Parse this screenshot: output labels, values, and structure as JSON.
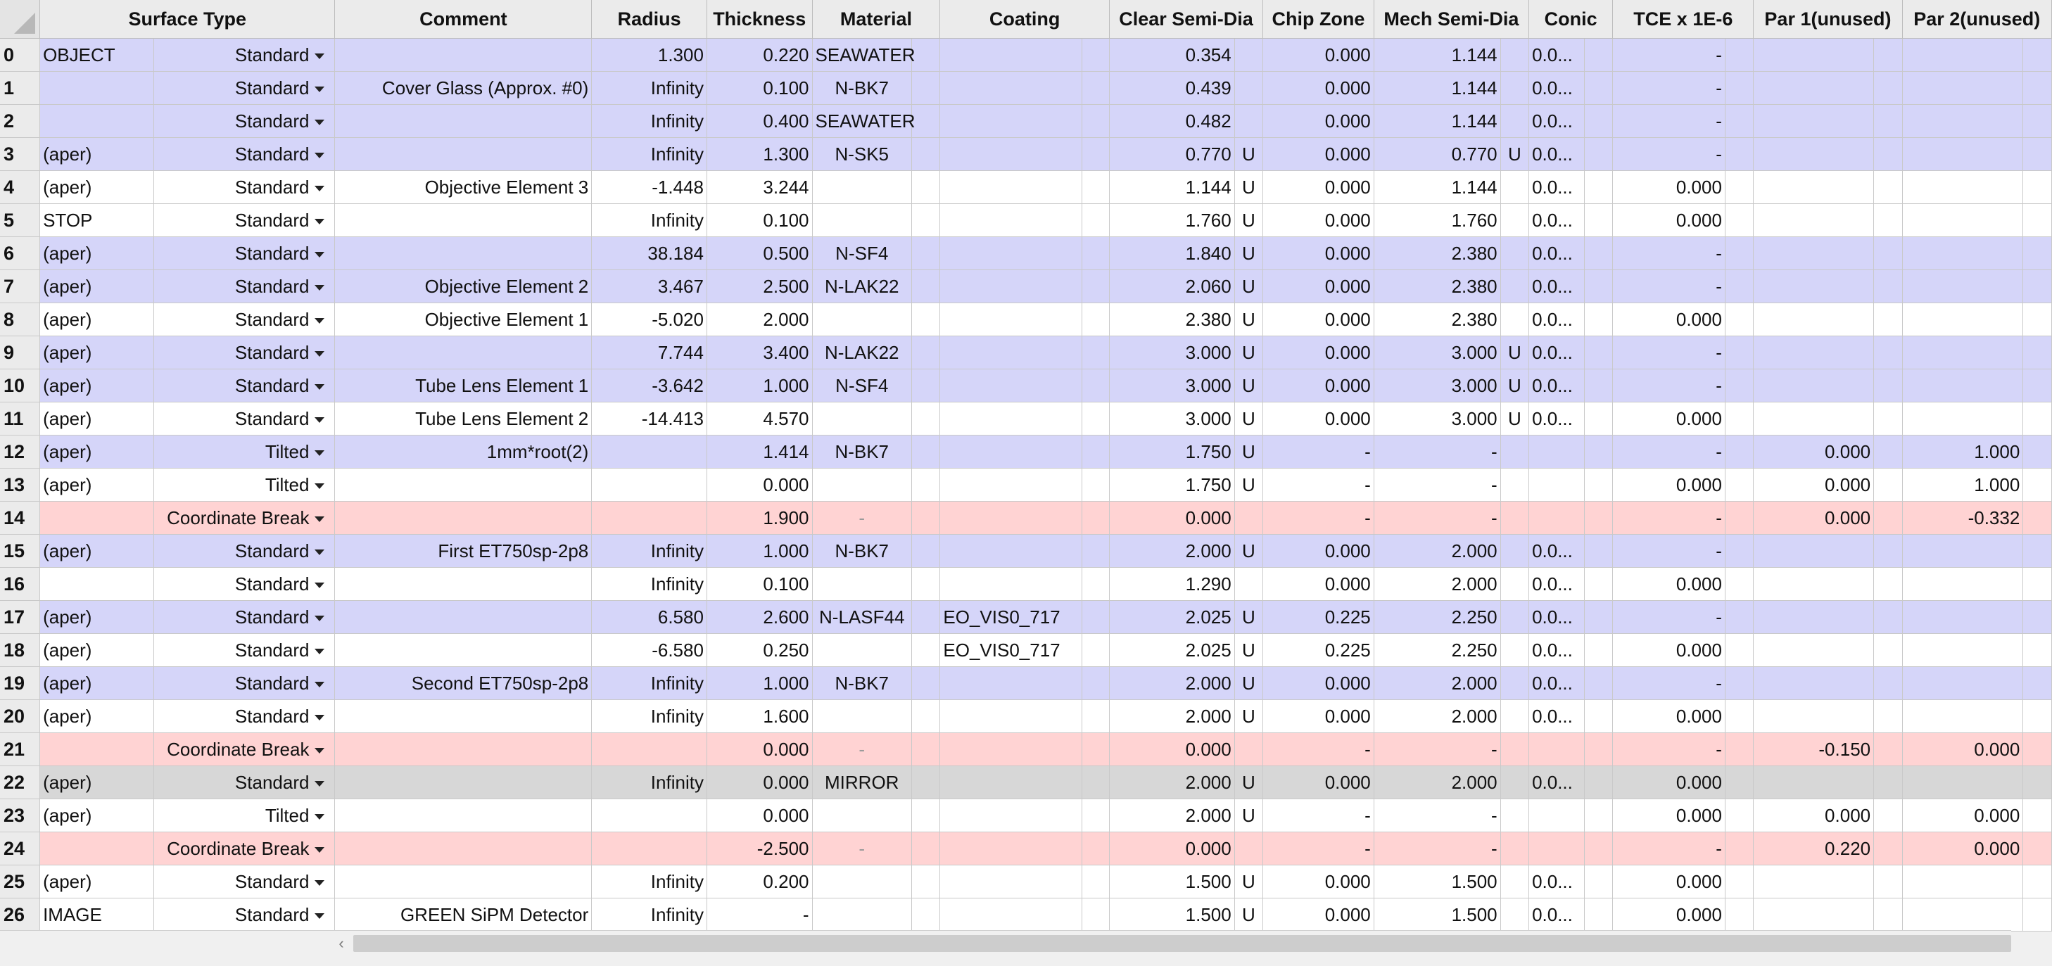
{
  "headers": {
    "surface_type": "Surface Type",
    "comment": "Comment",
    "radius": "Radius",
    "thickness": "Thickness",
    "material": "Material",
    "coating": "Coating",
    "clear_semi_dia": "Clear Semi-Dia",
    "chip_zone": "Chip Zone",
    "mech_semi_dia": "Mech Semi-Dia",
    "conic": "Conic",
    "tce": "TCE x 1E-6",
    "par1": "Par 1(unused)",
    "par2": "Par 2(unused)"
  },
  "row_colors": {
    "highlight": "#d5d5f9",
    "normal": "#ffffff",
    "coordinate_break": "#ffd3d3",
    "mirror": "#d7d7d7"
  },
  "rows": [
    {
      "num": "0",
      "name": "OBJECT",
      "type": "Standard",
      "comment": "",
      "radius": "1.300",
      "thickness": "0.220",
      "material": "SEAWATER",
      "coating": "",
      "clear": "0.354",
      "clear_flag": "",
      "chip": "0.000",
      "mech": "1.144",
      "mech_flag": "",
      "conic": "0.0...",
      "tce": "-",
      "par1": "",
      "par2": ""
    },
    {
      "num": "1",
      "name": "",
      "type": "Standard",
      "comment": "Cover Glass (Approx. #0)",
      "radius": "Infinity",
      "thickness": "0.100",
      "material": "N-BK7",
      "coating": "",
      "clear": "0.439",
      "clear_flag": "",
      "chip": "0.000",
      "mech": "1.144",
      "mech_flag": "",
      "conic": "0.0...",
      "tce": "-",
      "par1": "",
      "par2": ""
    },
    {
      "num": "2",
      "name": "",
      "type": "Standard",
      "comment": "",
      "radius": "Infinity",
      "thickness": "0.400",
      "material": "SEAWATER",
      "coating": "",
      "clear": "0.482",
      "clear_flag": "",
      "chip": "0.000",
      "mech": "1.144",
      "mech_flag": "",
      "conic": "0.0...",
      "tce": "-",
      "par1": "",
      "par2": ""
    },
    {
      "num": "3",
      "name": "(aper)",
      "type": "Standard",
      "comment": "",
      "radius": "Infinity",
      "thickness": "1.300",
      "material": "N-SK5",
      "coating": "",
      "clear": "0.770",
      "clear_flag": "U",
      "chip": "0.000",
      "mech": "0.770",
      "mech_flag": "U",
      "conic": "0.0...",
      "tce": "-",
      "par1": "",
      "par2": ""
    },
    {
      "num": "4",
      "name": "(aper)",
      "type": "Standard",
      "comment": "Objective Element 3",
      "radius": "-1.448",
      "thickness": "3.244",
      "material": "",
      "coating": "",
      "clear": "1.144",
      "clear_flag": "U",
      "chip": "0.000",
      "mech": "1.144",
      "mech_flag": "",
      "conic": "0.0...",
      "tce": "0.000",
      "par1": "",
      "par2": ""
    },
    {
      "num": "5",
      "name": "STOP",
      "type": "Standard",
      "comment": "",
      "radius": "Infinity",
      "thickness": "0.100",
      "material": "",
      "coating": "",
      "clear": "1.760",
      "clear_flag": "U",
      "chip": "0.000",
      "mech": "1.760",
      "mech_flag": "",
      "conic": "0.0...",
      "tce": "0.000",
      "par1": "",
      "par2": ""
    },
    {
      "num": "6",
      "name": "(aper)",
      "type": "Standard",
      "comment": "",
      "radius": "38.184",
      "thickness": "0.500",
      "material": "N-SF4",
      "coating": "",
      "clear": "1.840",
      "clear_flag": "U",
      "chip": "0.000",
      "mech": "2.380",
      "mech_flag": "",
      "conic": "0.0...",
      "tce": "-",
      "par1": "",
      "par2": ""
    },
    {
      "num": "7",
      "name": "(aper)",
      "type": "Standard",
      "comment": "Objective Element 2",
      "radius": "3.467",
      "thickness": "2.500",
      "material": "N-LAK22",
      "coating": "",
      "clear": "2.060",
      "clear_flag": "U",
      "chip": "0.000",
      "mech": "2.380",
      "mech_flag": "",
      "conic": "0.0...",
      "tce": "-",
      "par1": "",
      "par2": ""
    },
    {
      "num": "8",
      "name": "(aper)",
      "type": "Standard",
      "comment": "Objective Element 1",
      "radius": "-5.020",
      "thickness": "2.000",
      "material": "",
      "coating": "",
      "clear": "2.380",
      "clear_flag": "U",
      "chip": "0.000",
      "mech": "2.380",
      "mech_flag": "",
      "conic": "0.0...",
      "tce": "0.000",
      "par1": "",
      "par2": ""
    },
    {
      "num": "9",
      "name": "(aper)",
      "type": "Standard",
      "comment": "",
      "radius": "7.744",
      "thickness": "3.400",
      "material": "N-LAK22",
      "coating": "",
      "clear": "3.000",
      "clear_flag": "U",
      "chip": "0.000",
      "mech": "3.000",
      "mech_flag": "U",
      "conic": "0.0...",
      "tce": "-",
      "par1": "",
      "par2": ""
    },
    {
      "num": "10",
      "name": "(aper)",
      "type": "Standard",
      "comment": "Tube Lens Element 1",
      "radius": "-3.642",
      "thickness": "1.000",
      "material": "N-SF4",
      "coating": "",
      "clear": "3.000",
      "clear_flag": "U",
      "chip": "0.000",
      "mech": "3.000",
      "mech_flag": "U",
      "conic": "0.0...",
      "tce": "-",
      "par1": "",
      "par2": ""
    },
    {
      "num": "11",
      "name": "(aper)",
      "type": "Standard",
      "comment": "Tube Lens Element 2",
      "radius": "-14.413",
      "thickness": "4.570",
      "material": "",
      "coating": "",
      "clear": "3.000",
      "clear_flag": "U",
      "chip": "0.000",
      "mech": "3.000",
      "mech_flag": "U",
      "conic": "0.0...",
      "tce": "0.000",
      "par1": "",
      "par2": ""
    },
    {
      "num": "12",
      "name": "(aper)",
      "type": "Tilted",
      "comment": "1mm*root(2)",
      "radius": "",
      "thickness": "1.414",
      "material": "N-BK7",
      "coating": "",
      "clear": "1.750",
      "clear_flag": "U",
      "chip": "-",
      "mech": "-",
      "mech_flag": "",
      "conic": "",
      "tce": "-",
      "par1": "0.000",
      "par2": "1.000"
    },
    {
      "num": "13",
      "name": "(aper)",
      "type": "Tilted",
      "comment": "",
      "radius": "",
      "thickness": "0.000",
      "material": "",
      "coating": "",
      "clear": "1.750",
      "clear_flag": "U",
      "chip": "-",
      "mech": "-",
      "mech_flag": "",
      "conic": "",
      "tce": "0.000",
      "par1": "0.000",
      "par2": "1.000"
    },
    {
      "num": "14",
      "name": "",
      "type": "Coordinate Break",
      "comment": "",
      "radius": "",
      "thickness": "1.900",
      "material": "-",
      "coating": "",
      "clear": "0.000",
      "clear_flag": "",
      "chip": "-",
      "mech": "-",
      "mech_flag": "",
      "conic": "",
      "tce": "-",
      "par1": "0.000",
      "par2": "-0.332"
    },
    {
      "num": "15",
      "name": "(aper)",
      "type": "Standard",
      "comment": "First ET750sp-2p8",
      "radius": "Infinity",
      "thickness": "1.000",
      "material": "N-BK7",
      "coating": "",
      "clear": "2.000",
      "clear_flag": "U",
      "chip": "0.000",
      "mech": "2.000",
      "mech_flag": "",
      "conic": "0.0...",
      "tce": "-",
      "par1": "",
      "par2": ""
    },
    {
      "num": "16",
      "name": "",
      "type": "Standard",
      "comment": "",
      "radius": "Infinity",
      "thickness": "0.100",
      "material": "",
      "coating": "",
      "clear": "1.290",
      "clear_flag": "",
      "chip": "0.000",
      "mech": "2.000",
      "mech_flag": "",
      "conic": "0.0...",
      "tce": "0.000",
      "par1": "",
      "par2": ""
    },
    {
      "num": "17",
      "name": "(aper)",
      "type": "Standard",
      "comment": "",
      "radius": "6.580",
      "thickness": "2.600",
      "material": "N-LASF44",
      "coating": "EO_VIS0_717",
      "clear": "2.025",
      "clear_flag": "U",
      "chip": "0.225",
      "mech": "2.250",
      "mech_flag": "",
      "conic": "0.0...",
      "tce": "-",
      "par1": "",
      "par2": ""
    },
    {
      "num": "18",
      "name": "(aper)",
      "type": "Standard",
      "comment": "",
      "radius": "-6.580",
      "thickness": "0.250",
      "material": "",
      "coating": "EO_VIS0_717",
      "clear": "2.025",
      "clear_flag": "U",
      "chip": "0.225",
      "mech": "2.250",
      "mech_flag": "",
      "conic": "0.0...",
      "tce": "0.000",
      "par1": "",
      "par2": ""
    },
    {
      "num": "19",
      "name": "(aper)",
      "type": "Standard",
      "comment": "Second ET750sp-2p8",
      "radius": "Infinity",
      "thickness": "1.000",
      "material": "N-BK7",
      "coating": "",
      "clear": "2.000",
      "clear_flag": "U",
      "chip": "0.000",
      "mech": "2.000",
      "mech_flag": "",
      "conic": "0.0...",
      "tce": "-",
      "par1": "",
      "par2": ""
    },
    {
      "num": "20",
      "name": "(aper)",
      "type": "Standard",
      "comment": "",
      "radius": "Infinity",
      "thickness": "1.600",
      "material": "",
      "coating": "",
      "clear": "2.000",
      "clear_flag": "U",
      "chip": "0.000",
      "mech": "2.000",
      "mech_flag": "",
      "conic": "0.0...",
      "tce": "0.000",
      "par1": "",
      "par2": ""
    },
    {
      "num": "21",
      "name": "",
      "type": "Coordinate Break",
      "comment": "",
      "radius": "",
      "thickness": "0.000",
      "material": "-",
      "coating": "",
      "clear": "0.000",
      "clear_flag": "",
      "chip": "-",
      "mech": "-",
      "mech_flag": "",
      "conic": "",
      "tce": "-",
      "par1": "-0.150",
      "par2": "0.000"
    },
    {
      "num": "22",
      "name": "(aper)",
      "type": "Standard",
      "comment": "",
      "radius": "Infinity",
      "thickness": "0.000",
      "material": "MIRROR",
      "coating": "",
      "clear": "2.000",
      "clear_flag": "U",
      "chip": "0.000",
      "mech": "2.000",
      "mech_flag": "",
      "conic": "0.0...",
      "tce": "0.000",
      "par1": "",
      "par2": ""
    },
    {
      "num": "23",
      "name": "(aper)",
      "type": "Tilted",
      "comment": "",
      "radius": "",
      "thickness": "0.000",
      "material": "",
      "coating": "",
      "clear": "2.000",
      "clear_flag": "U",
      "chip": "-",
      "mech": "-",
      "mech_flag": "",
      "conic": "",
      "tce": "0.000",
      "par1": "0.000",
      "par2": "0.000"
    },
    {
      "num": "24",
      "name": "",
      "type": "Coordinate Break",
      "comment": "",
      "radius": "",
      "thickness": "-2.500",
      "material": "-",
      "coating": "",
      "clear": "0.000",
      "clear_flag": "",
      "chip": "-",
      "mech": "-",
      "mech_flag": "",
      "conic": "",
      "tce": "-",
      "par1": "0.220",
      "par2": "0.000"
    },
    {
      "num": "25",
      "name": "(aper)",
      "type": "Standard",
      "comment": "",
      "radius": "Infinity",
      "thickness": "0.200",
      "material": "",
      "coating": "",
      "clear": "1.500",
      "clear_flag": "U",
      "chip": "0.000",
      "mech": "1.500",
      "mech_flag": "",
      "conic": "0.0...",
      "tce": "0.000",
      "par1": "",
      "par2": ""
    },
    {
      "num": "26",
      "name": "IMAGE",
      "type": "Standard",
      "comment": "GREEN SiPM Detector",
      "radius": "Infinity",
      "thickness": "-",
      "material": "",
      "coating": "",
      "clear": "1.500",
      "clear_flag": "U",
      "chip": "0.000",
      "mech": "1.500",
      "mech_flag": "",
      "conic": "0.0...",
      "tce": "0.000",
      "par1": "",
      "par2": ""
    }
  ],
  "scrollbar": {
    "left_arrow": "‹"
  }
}
